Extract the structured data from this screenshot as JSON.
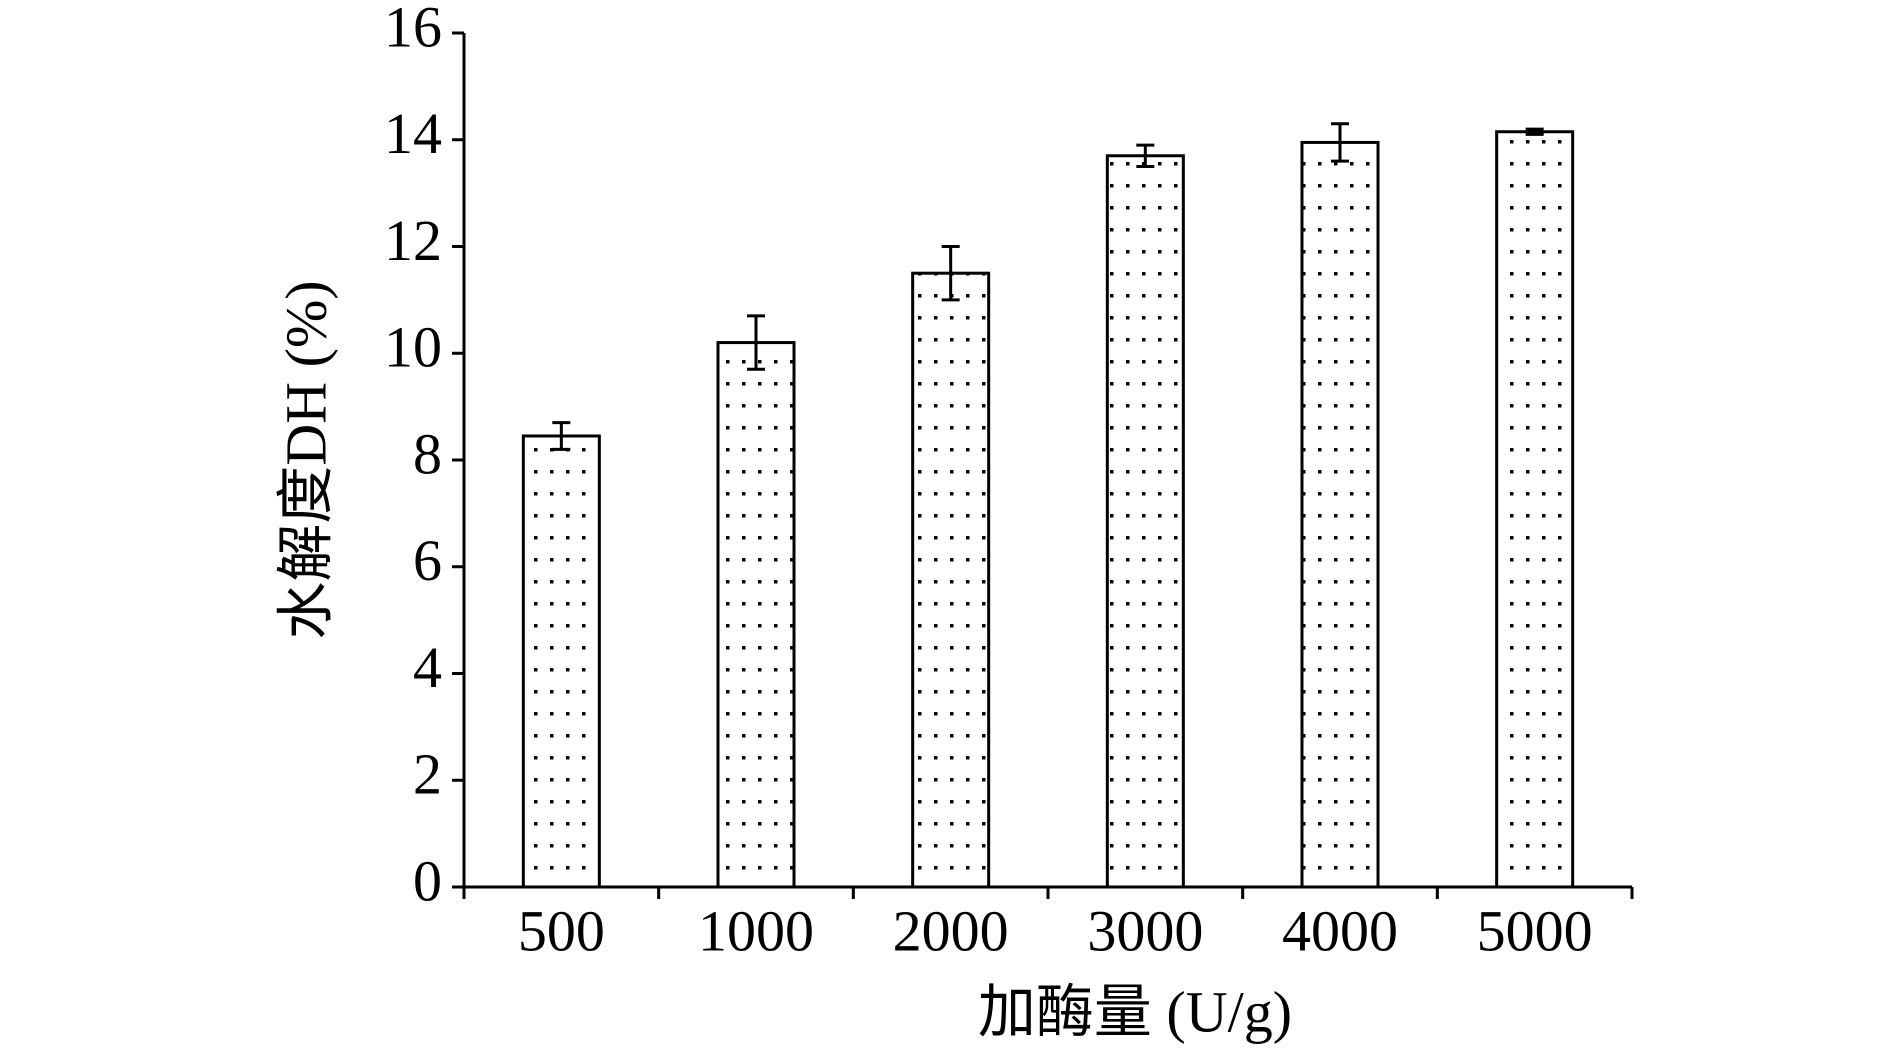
{
  "chart_data": {
    "type": "bar",
    "x_label": "加酶量 (U/g)",
    "y_label": "水解度DH (%)",
    "categories": [
      "500",
      "1000",
      "2000",
      "3000",
      "4000",
      "5000"
    ],
    "values": [
      8.45,
      10.2,
      11.5,
      13.7,
      13.95,
      14.15
    ],
    "errors": [
      0.25,
      0.5,
      0.5,
      0.2,
      0.35,
      0.05
    ],
    "ylim": [
      0,
      16
    ],
    "yticks": [
      0,
      2,
      4,
      6,
      8,
      10,
      12,
      14,
      16
    ],
    "grid": false
  }
}
